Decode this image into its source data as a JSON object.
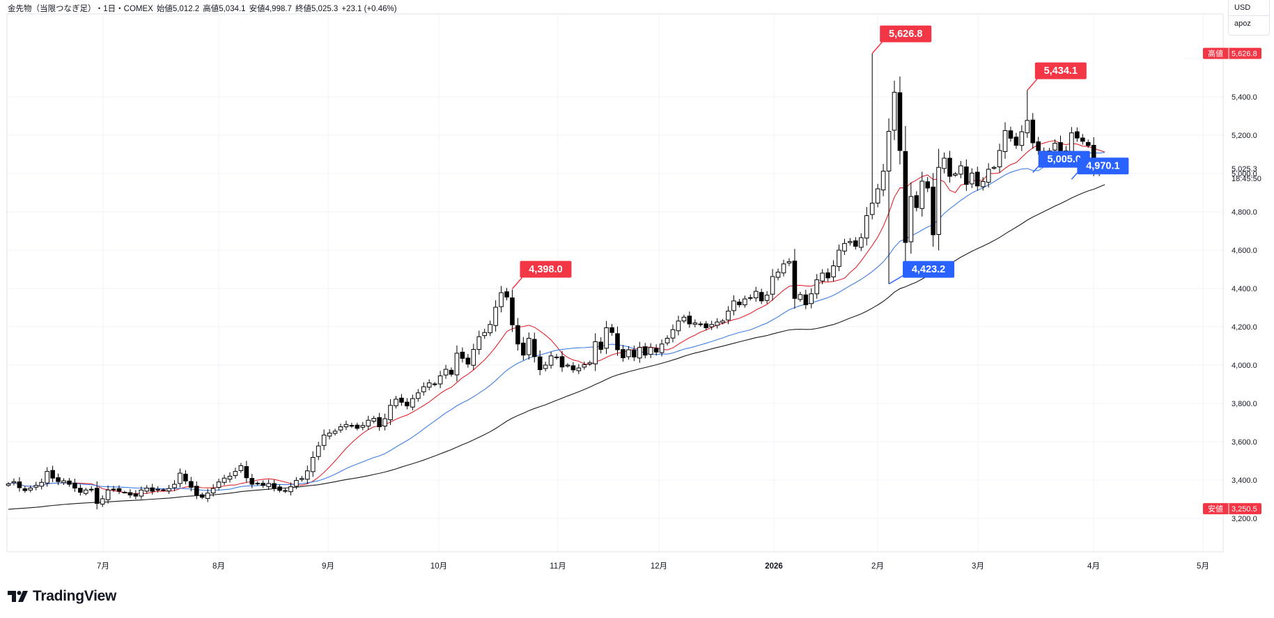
{
  "header": {
    "symbol": "金先物（当限つなぎ足）",
    "interval": "・1日・COMEX",
    "open": "始値5,012.2",
    "high": "高値5,034.1",
    "low": "安値4,998.7",
    "close": "終値5,025.3",
    "change": "+23.1 (+0.46%)"
  },
  "topright": {
    "currency": "USD",
    "user": "apoz"
  },
  "logo": {
    "text": "TradingView"
  },
  "colors": {
    "up_fill": "#ffffff",
    "candle": "#000000",
    "ma_short": "#e0262f",
    "ma_mid": "#3d7ee6",
    "ma_long": "#1b1b1b",
    "label_red": "#f23645",
    "label_blue": "#2962ff",
    "grid": "#f0f3fa"
  },
  "chart_data": {
    "type": "candlestick",
    "title": "金先物（当限つなぎ足）・1日・COMEX",
    "ylim": [
      3000,
      5800
    ],
    "y_ticks": [
      "3,200.0",
      "3,400.0",
      "3,600.0",
      "3,800.0",
      "4,000.0",
      "4,200.0",
      "4,400.0",
      "4,600.0",
      "4,800.0",
      "5,000.0",
      "5,200.0",
      "5,400.0"
    ],
    "x_ticks": [
      "7月",
      "8月",
      "9月",
      "10月",
      "11月",
      "12月",
      "2026",
      "2月",
      "3月",
      "4月",
      "5月"
    ],
    "price_axis_labels": {
      "high_label": "高値",
      "high_value": "5,626.8",
      "last_value": "5,025.3",
      "countdown": "18:45:50",
      "low_label": "安値",
      "low_value": "3,250.5"
    },
    "annotations": [
      {
        "text": "5,626.8",
        "color": "red",
        "price": 5626.8,
        "date_index": 156
      },
      {
        "text": "5,434.1",
        "color": "red",
        "price": 5434.1,
        "date_index": 184
      },
      {
        "text": "4,398.0",
        "color": "red",
        "price": 4398.0,
        "date_index": 91
      },
      {
        "text": "5,005.0",
        "color": "blue",
        "price": 5005.0,
        "date_index": 185
      },
      {
        "text": "4,970.1",
        "color": "blue",
        "price": 4970.1,
        "date_index": 192
      },
      {
        "text": "4,423.2",
        "color": "blue",
        "price": 4423.2,
        "date_index": 159
      }
    ],
    "close_series": [
      3380,
      3392,
      3360,
      3345,
      3358,
      3372,
      3388,
      3445,
      3410,
      3392,
      3396,
      3378,
      3358,
      3336,
      3348,
      3352,
      3278,
      3302,
      3348,
      3352,
      3342,
      3336,
      3322,
      3316,
      3348,
      3358,
      3342,
      3352,
      3348,
      3356,
      3378,
      3436,
      3395,
      3362,
      3322,
      3310,
      3332,
      3356,
      3390,
      3410,
      3420,
      3445,
      3475,
      3412,
      3378,
      3381,
      3372,
      3382,
      3358,
      3346,
      3345,
      3365,
      3398,
      3408,
      3448,
      3518,
      3578,
      3635,
      3645,
      3655,
      3678,
      3690,
      3685,
      3670,
      3685,
      3712,
      3722,
      3678,
      3720,
      3790,
      3822,
      3806,
      3787,
      3825,
      3855,
      3887,
      3907,
      3898,
      3944,
      3978,
      3952,
      4062,
      4035,
      4005,
      4082,
      4148,
      4170,
      4212,
      4302,
      4378,
      4355,
      4210,
      4110,
      4052,
      4140,
      4044,
      3976,
      4000,
      4048,
      4042,
      3990,
      4000,
      3975,
      3985,
      4002,
      4012,
      4122,
      4082,
      4195,
      4170,
      4080,
      4038,
      4080,
      4042,
      4092,
      4052,
      4092,
      4068,
      4110,
      4140,
      4185,
      4230,
      4250,
      4215,
      4220,
      4212,
      4195,
      4212,
      4225,
      4230,
      4282,
      4335,
      4315,
      4345,
      4352,
      4385,
      4335,
      4365,
      4462,
      4485,
      4528,
      4540,
      4348,
      4368,
      4315,
      4372,
      4445,
      4480,
      4455,
      4518,
      4600,
      4635,
      4645,
      4620,
      4665,
      4780,
      4845,
      4920,
      5012,
      5220,
      5424,
      5120,
      4640,
      4880,
      4822,
      4960,
      4924,
      4680,
      5032,
      5080,
      4985,
      4998,
      5040,
      4943,
      5002,
      4935,
      4958,
      5022,
      5032,
      5120,
      5224,
      5184,
      5147,
      5218,
      5277,
      5160,
      5120,
      5106,
      5118,
      5158,
      5080,
      5118,
      5212,
      5185,
      5168,
      5146,
      5022,
      5005,
      5025
    ]
  }
}
